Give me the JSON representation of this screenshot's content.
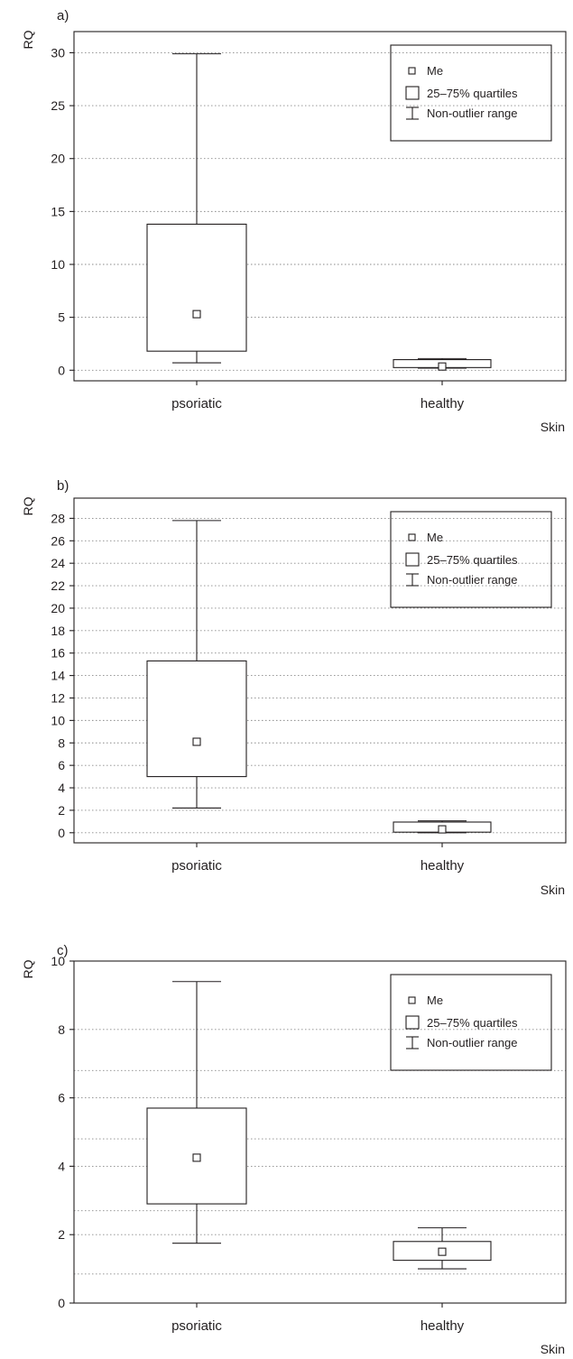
{
  "chart_data": [
    {
      "type": "boxplot",
      "panel_label": "a)",
      "ylabel": "RQ",
      "xlabel": "Skin",
      "categories": [
        "psoriatic",
        "healthy"
      ],
      "yticks": [
        0,
        5,
        10,
        15,
        20,
        25,
        30
      ],
      "ylim": [
        -1,
        32
      ],
      "grid": true,
      "legend_position": "top-right",
      "legend": [
        "Me",
        "25–75% quartiles",
        "Non-outlier range"
      ],
      "boxes": [
        {
          "median": 5.3,
          "q1": 1.8,
          "q3": 13.8,
          "min": 0.7,
          "max": 29.9
        },
        {
          "median": 0.35,
          "q1": 0.25,
          "q3": 1.0,
          "min": 0.2,
          "max": 1.1
        }
      ]
    },
    {
      "type": "boxplot",
      "panel_label": "b)",
      "ylabel": "RQ",
      "xlabel": "Skin",
      "categories": [
        "psoriatic",
        "healthy"
      ],
      "yticks": [
        0,
        2,
        4,
        6,
        8,
        10,
        12,
        14,
        16,
        18,
        20,
        22,
        24,
        26,
        28
      ],
      "ylim": [
        -0.9,
        29.8
      ],
      "grid": true,
      "legend_position": "top-right",
      "legend": [
        "Me",
        "25–75% quartiles",
        "Non-outlier range"
      ],
      "boxes": [
        {
          "median": 8.1,
          "q1": 5.0,
          "q3": 15.3,
          "min": 2.2,
          "max": 27.8
        },
        {
          "median": 0.3,
          "q1": 0.05,
          "q3": 0.95,
          "min": 0.0,
          "max": 1.05
        }
      ]
    },
    {
      "type": "boxplot",
      "panel_label": "c)",
      "ylabel": "RQ",
      "xlabel": "Skin",
      "categories": [
        "psoriatic",
        "healthy"
      ],
      "yticks": [
        0,
        2,
        4,
        6,
        8,
        10
      ],
      "ylim": [
        0,
        10
      ],
      "grid": true,
      "legend_position": "top-right",
      "legend": [
        "Me",
        "25–75% quartiles",
        "Non-outlier range"
      ],
      "boxes": [
        {
          "median": 4.25,
          "q1": 2.9,
          "q3": 5.7,
          "min": 1.75,
          "max": 9.4
        },
        {
          "median": 1.5,
          "q1": 1.25,
          "q3": 1.8,
          "min": 1.0,
          "max": 2.2
        }
      ]
    }
  ]
}
